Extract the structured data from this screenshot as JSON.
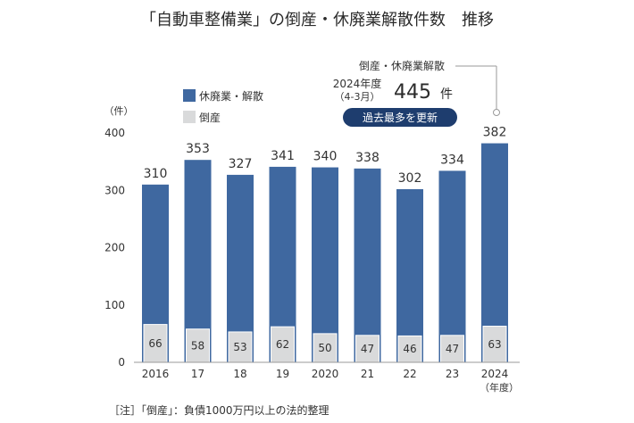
{
  "chart_data": {
    "type": "bar",
    "title": "「自動車整備業」の倒産・休廃業解散件数　推移",
    "y_unit_label": "（件）",
    "x_unit_label": "（年度）",
    "ylim": [
      0,
      400
    ],
    "yticks": [
      "0",
      "100",
      "200",
      "300",
      "400"
    ],
    "grid": false,
    "legend_position": "top-left",
    "categories": [
      "2016",
      "17",
      "18",
      "19",
      "2020",
      "21",
      "22",
      "23",
      "2024"
    ],
    "series": [
      {
        "name": "休廃業・解散",
        "values": [
          310,
          353,
          327,
          341,
          340,
          338,
          302,
          334,
          382
        ],
        "color": "#3f68a0"
      },
      {
        "name": "倒産",
        "values": [
          66,
          58,
          53,
          62,
          50,
          47,
          46,
          47,
          63
        ],
        "color": "#d9dadb"
      }
    ],
    "annotation": {
      "header": "倒産・休廃業解散",
      "period_line1": "2024年度",
      "period_line2": "（4-3月）",
      "total_value": "445",
      "total_unit": "件",
      "badge": "過去最多を更新",
      "badge_color": "#1e3d6e"
    },
    "footnote": "［注］「倒産」：負債1000万円以上の法的整理"
  }
}
